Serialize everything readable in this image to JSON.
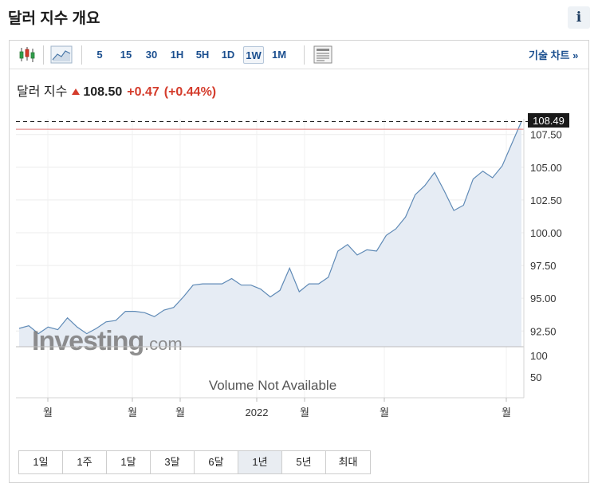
{
  "page": {
    "title": "달러 지수 개요",
    "info_label": "i"
  },
  "toolbar": {
    "intervals": [
      "5",
      "15",
      "30",
      "1H",
      "5H",
      "1D",
      "1W",
      "1M"
    ],
    "active_interval": "1W",
    "tech_chart_link": "기술 차트 »",
    "icons": [
      "candlestick-icon",
      "area-chart-icon",
      "news-panel-icon"
    ]
  },
  "quote": {
    "name": "달러 지수",
    "price": "108.50",
    "change": "+0.47",
    "change_pct": "(+0.44%)",
    "direction": "up"
  },
  "ranges": {
    "items": [
      "1일",
      "1주",
      "1달",
      "3달",
      "6달",
      "1년",
      "5년",
      "최대"
    ],
    "active": "1년"
  },
  "watermark": {
    "brand": "Investing",
    "suffix": ".com"
  },
  "chart_data": {
    "type": "area",
    "y_axis": {
      "ylim": [
        91.3,
        108.7
      ],
      "tick_labels": [
        "107.50",
        "105.00",
        "102.50",
        "100.00",
        "97.50",
        "95.00",
        "92.50"
      ],
      "ticks": [
        107.5,
        105,
        102.5,
        100,
        97.5,
        95,
        92.5
      ]
    },
    "x_axis": {
      "tick_labels": [
        "월",
        "월",
        "월",
        "2022",
        "월",
        "월",
        "월"
      ]
    },
    "current_label": "108.49",
    "current_value": 108.49,
    "reference_value": 107.9,
    "series": [
      {
        "values": [
          92.7,
          92.9,
          92.3,
          92.8,
          92.6,
          93.5,
          92.8,
          92.3,
          92.7,
          93.2,
          93.3,
          94.0,
          94.0,
          93.9,
          93.6,
          94.1,
          94.3,
          95.1,
          96.0,
          96.1,
          96.1,
          96.1,
          96.5,
          96.0,
          96.0,
          95.7,
          95.1,
          95.6,
          97.3,
          95.5,
          96.1,
          96.1,
          96.6,
          98.6,
          99.1,
          98.3,
          98.7,
          98.6,
          99.8,
          100.3,
          101.2,
          102.9,
          103.6,
          104.6,
          103.2,
          101.7,
          102.1,
          104.1,
          104.7,
          104.2,
          105.1,
          106.8,
          108.5
        ]
      }
    ],
    "volume": {
      "message": "Volume Not Available",
      "tick_labels": [
        "100",
        "50"
      ]
    }
  }
}
